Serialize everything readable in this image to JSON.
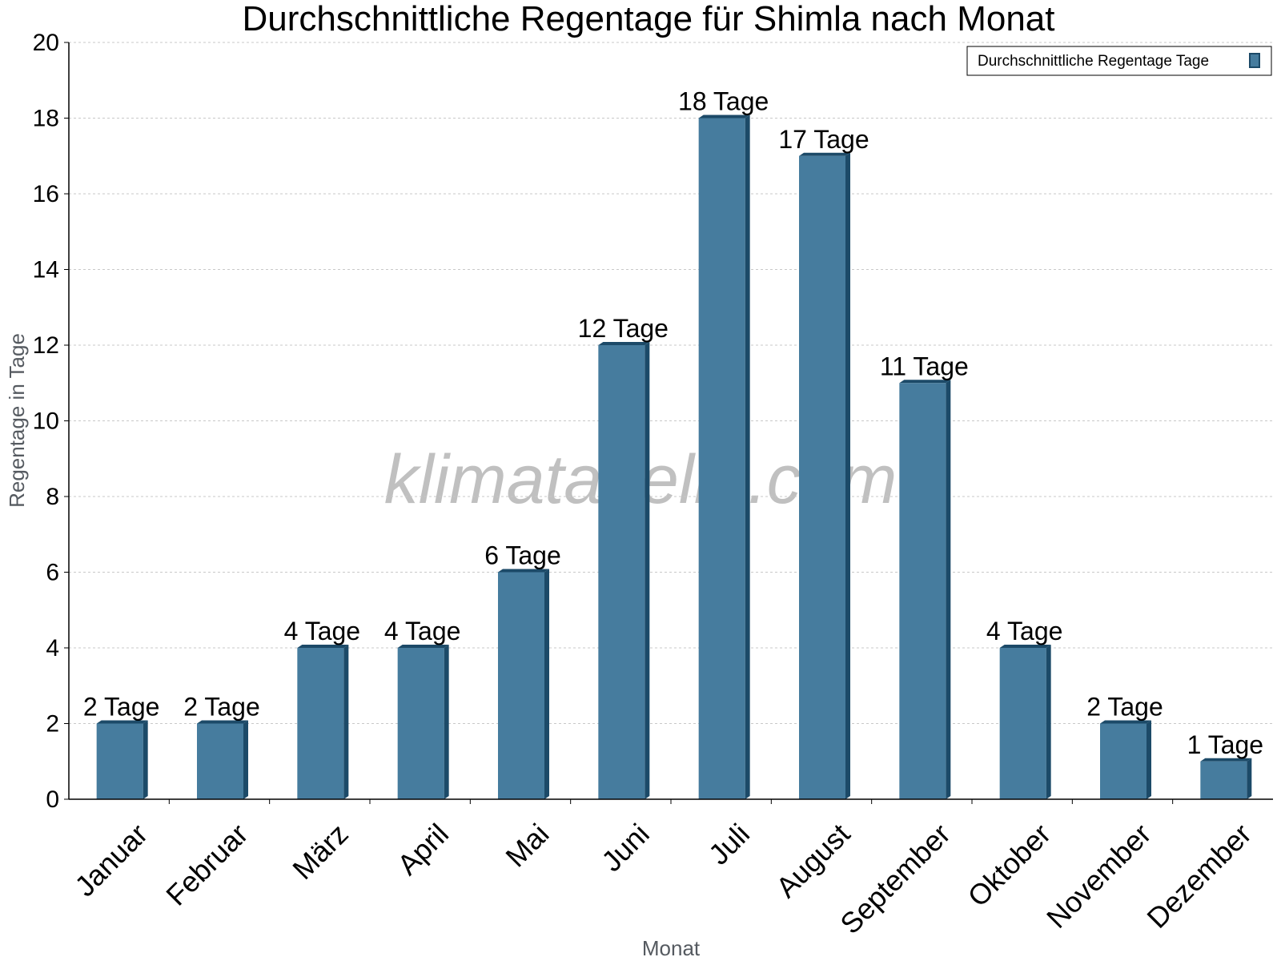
{
  "chart_data": {
    "type": "bar",
    "title": "Durchschnittliche Regentage für Shimla nach Monat",
    "xlabel": "Monat",
    "ylabel": "Regentage in Tage",
    "ylim": [
      0,
      20
    ],
    "yticks": [
      0,
      2,
      4,
      6,
      8,
      10,
      12,
      14,
      16,
      18,
      20
    ],
    "grid": true,
    "legend_position": "top-right",
    "categories": [
      "Januar",
      "Februar",
      "März",
      "April",
      "Mai",
      "Juni",
      "Juli",
      "August",
      "September",
      "Oktober",
      "November",
      "Dezember"
    ],
    "series": [
      {
        "name": "Durchschnittliche Regentage Tage",
        "values": [
          2,
          2,
          4,
          4,
          6,
          12,
          18,
          17,
          11,
          4,
          2,
          1
        ],
        "color": "#467c9e",
        "edge_color": "#1c4a68"
      }
    ],
    "data_labels": [
      "2 Tage",
      "2 Tage",
      "4 Tage",
      "4 Tage",
      "6 Tage",
      "12 Tage",
      "18 Tage",
      "17 Tage",
      "11 Tage",
      "4 Tage",
      "2 Tage",
      "1 Tage"
    ],
    "watermark": "klimatabelle.com"
  }
}
